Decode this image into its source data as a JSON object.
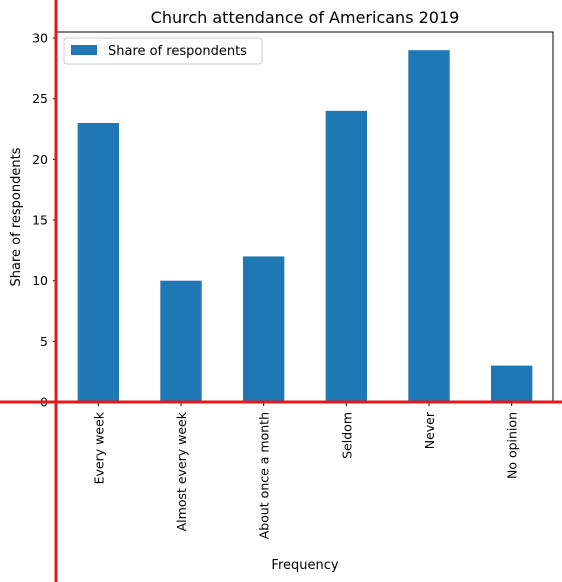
{
  "chart_data": {
    "type": "bar",
    "title": "Church attendance of Americans 2019",
    "xlabel": "Frequency",
    "ylabel": "Share of respondents",
    "categories": [
      "Every week",
      "Almost every week",
      "About once a month",
      "Seldom",
      "Never",
      "No opinion"
    ],
    "series": [
      {
        "name": "Share of respondents",
        "values": [
          23,
          10,
          12,
          24,
          29,
          3
        ]
      }
    ],
    "ylim": [
      0,
      30.5
    ],
    "yticks": [
      "0",
      "5",
      "10",
      "15",
      "20",
      "25",
      "30"
    ],
    "grid": false,
    "legend_position": "top-left",
    "colors": {
      "bar": "#1f77b4",
      "overlay_lines": "#e31a1c"
    }
  }
}
